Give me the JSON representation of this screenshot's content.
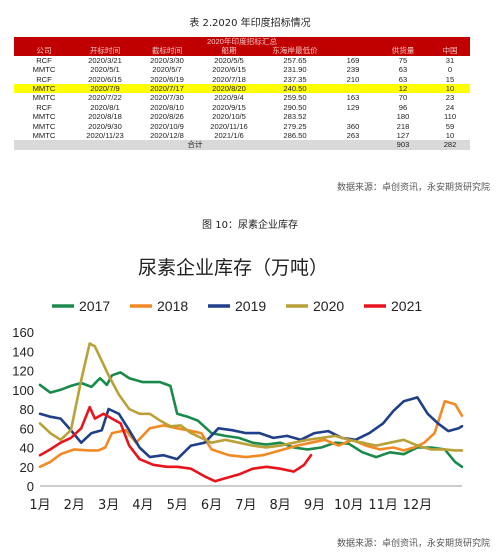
{
  "table": {
    "caption": "表 2.2020 年印度招标情况",
    "banner": "2020年印度招标汇总",
    "headers": [
      "公司",
      "开标时间",
      "截标时间",
      "船期",
      "东海岸最低价",
      "",
      "供货量",
      "中国"
    ],
    "rows": [
      [
        "RCF",
        "2020/3/21",
        "2020/3/30",
        "2020/5/5",
        "257.65",
        "169",
        "75",
        "31"
      ],
      [
        "MMTC",
        "2020/5/1",
        "2020/5/7",
        "2020/6/15",
        "231.90",
        "239",
        "63",
        "0"
      ],
      [
        "RCF",
        "2020/6/15",
        "2020/6/19",
        "2020/7/18",
        "237.35",
        "210",
        "63",
        "15"
      ],
      [
        "MMTC",
        "2020/7/9",
        "2020/7/17",
        "2020/8/20",
        "240.50",
        "",
        "12",
        "10"
      ],
      [
        "MMTC",
        "2020/7/22",
        "2020/7/30",
        "2020/9/4",
        "259.50",
        "163",
        "70",
        "23"
      ],
      [
        "RCF",
        "2020/8/1",
        "2020/8/10",
        "2020/9/15",
        "290.50",
        "129",
        "96",
        "24"
      ],
      [
        "MMTC",
        "2020/8/18",
        "2020/8/26",
        "2020/10/5",
        "283.52",
        "",
        "180",
        "110"
      ],
      [
        "MMTC",
        "2020/9/30",
        "2020/10/9",
        "2020/11/16",
        "279.25",
        "360",
        "218",
        "59"
      ],
      [
        "MMTC",
        "2020/11/23",
        "2020/12/8",
        "2021/1/6",
        "286.50",
        "263",
        "127",
        "10"
      ]
    ],
    "highlight_row_index": 3,
    "total": {
      "label": "合计",
      "supply": "903",
      "china": "282"
    }
  },
  "source_1": "数据来源：卓创资讯，永安期货研究院",
  "figure_caption": "图 10：尿素企业库存",
  "source_2": "数据来源：卓创资讯，永安期货研究院",
  "chart_data": {
    "type": "line",
    "title": "尿素企业库存（万吨）",
    "xlabel": "",
    "ylabel": "",
    "categories": [
      "1月",
      "2月",
      "3月",
      "4月",
      "5月",
      "6月",
      "7月",
      "8月",
      "9月",
      "10月",
      "11月",
      "12月"
    ],
    "xlim": [
      1,
      13.3
    ],
    "ylim": [
      0,
      160
    ],
    "yticks": [
      0,
      20,
      40,
      60,
      80,
      100,
      120,
      140,
      160
    ],
    "grid": false,
    "legend_position": "top",
    "series": [
      {
        "name": "2017",
        "color": "#1a8a4b",
        "x": [
          1.0,
          1.3,
          1.6,
          1.9,
          2.2,
          2.5,
          2.75,
          2.95,
          3.1,
          3.35,
          3.6,
          4.0,
          4.5,
          4.8,
          5.0,
          5.3,
          5.6,
          6.0,
          6.4,
          6.8,
          7.2,
          7.6,
          8.0,
          8.4,
          8.8,
          9.2,
          9.6,
          10.0,
          10.4,
          10.8,
          11.2,
          11.6,
          12.0,
          12.4,
          12.8,
          13.1,
          13.3
        ],
        "y": [
          105,
          97,
          100,
          104,
          107,
          103,
          112,
          105,
          115,
          118,
          112,
          108,
          108,
          104,
          75,
          72,
          68,
          55,
          52,
          50,
          45,
          43,
          45,
          40,
          38,
          40,
          45,
          44,
          35,
          30,
          35,
          33,
          40,
          40,
          38,
          25,
          20
        ]
      },
      {
        "name": "2018",
        "color": "#f28a24",
        "x": [
          1.0,
          1.3,
          1.6,
          2.0,
          2.4,
          2.7,
          2.9,
          3.1,
          3.5,
          3.8,
          4.2,
          4.6,
          5.0,
          5.3,
          5.7,
          6.0,
          6.5,
          7.0,
          7.5,
          8.0,
          8.5,
          8.9,
          9.3,
          9.7,
          10.1,
          10.5,
          10.9,
          11.3,
          11.6,
          11.9,
          12.2,
          12.5,
          12.8,
          13.1,
          13.3
        ],
        "y": [
          20,
          25,
          33,
          38,
          37,
          37,
          40,
          55,
          58,
          45,
          60,
          63,
          60,
          58,
          55,
          38,
          32,
          30,
          32,
          37,
          42,
          45,
          48,
          42,
          48,
          42,
          38,
          40,
          37,
          40,
          45,
          55,
          88,
          85,
          73
        ]
      },
      {
        "name": "2019",
        "color": "#1f3f88",
        "x": [
          1.0,
          1.3,
          1.6,
          1.9,
          2.2,
          2.5,
          2.8,
          3.0,
          3.3,
          3.6,
          3.9,
          4.2,
          4.6,
          5.0,
          5.4,
          5.8,
          6.2,
          6.6,
          7.0,
          7.4,
          7.8,
          8.2,
          8.6,
          9.0,
          9.4,
          9.8,
          10.2,
          10.6,
          11.0,
          11.3,
          11.6,
          11.8,
          12.0,
          12.3,
          12.6,
          12.9,
          13.2,
          13.3
        ],
        "y": [
          75,
          72,
          70,
          58,
          45,
          55,
          58,
          80,
          75,
          58,
          40,
          30,
          32,
          28,
          42,
          45,
          60,
          58,
          55,
          55,
          50,
          52,
          48,
          55,
          57,
          50,
          48,
          55,
          65,
          78,
          88,
          90,
          92,
          75,
          65,
          57,
          60,
          62
        ]
      },
      {
        "name": "2020",
        "color": "#b9a037",
        "x": [
          1.0,
          1.3,
          1.6,
          1.9,
          2.2,
          2.45,
          2.6,
          2.8,
          3.0,
          3.3,
          3.6,
          3.9,
          4.2,
          4.5,
          4.8,
          5.1,
          5.4,
          5.7,
          6.0,
          6.4,
          6.8,
          7.2,
          7.6,
          8.0,
          8.4,
          8.8,
          9.2,
          9.6,
          10.0,
          10.4,
          10.8,
          11.2,
          11.6,
          12.0,
          12.4,
          12.8,
          13.1,
          13.3
        ],
        "y": [
          65,
          55,
          48,
          58,
          110,
          148,
          145,
          130,
          115,
          95,
          80,
          75,
          75,
          68,
          62,
          63,
          55,
          50,
          45,
          48,
          45,
          42,
          40,
          42,
          45,
          48,
          50,
          52,
          48,
          45,
          42,
          45,
          48,
          42,
          38,
          38,
          37,
          37
        ]
      },
      {
        "name": "2021",
        "color": "#e8141c",
        "x": [
          1.0,
          1.3,
          1.6,
          1.9,
          2.2,
          2.45,
          2.6,
          2.85,
          3.1,
          3.35,
          3.6,
          3.9,
          4.3,
          4.7,
          5.0,
          5.4,
          5.8,
          6.1,
          6.4,
          6.8,
          7.2,
          7.6,
          8.0,
          8.4,
          8.7,
          8.9
        ],
        "y": [
          32,
          38,
          45,
          50,
          60,
          82,
          70,
          75,
          70,
          65,
          42,
          28,
          22,
          20,
          20,
          18,
          10,
          5,
          8,
          12,
          18,
          20,
          18,
          15,
          22,
          32
        ]
      }
    ]
  }
}
